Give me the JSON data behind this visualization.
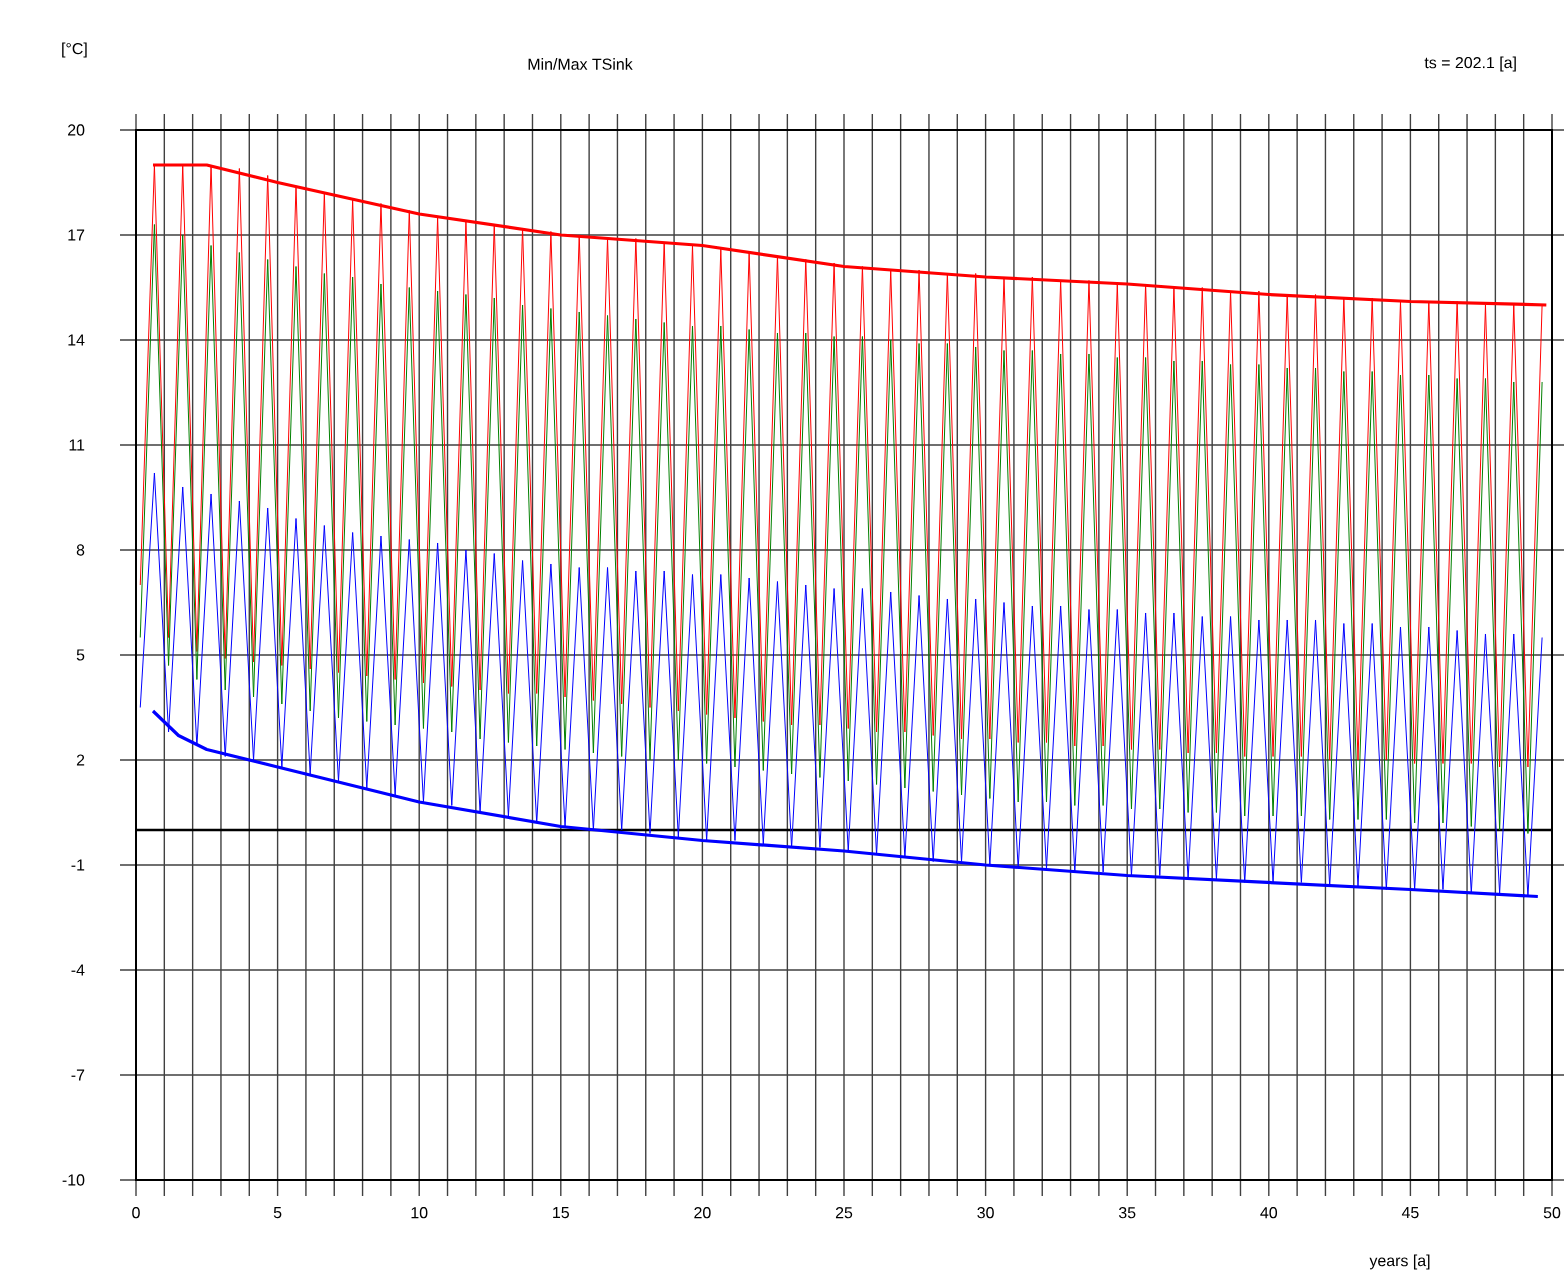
{
  "chart_data": {
    "type": "line",
    "title": "Min/Max TSink",
    "ylabel": "[°C]",
    "xlabel": "years [a]",
    "annotations": [
      "ts = 202.1 [a]"
    ],
    "xlim": [
      0,
      50
    ],
    "ylim": [
      -10,
      20
    ],
    "xticks": [
      0,
      {
        "value": 1,
        "label": null
      },
      {
        "value": 2,
        "label": null
      },
      {
        "value": 3,
        "label": null
      },
      {
        "value": 4,
        "label": null
      },
      5,
      {
        "value": 6,
        "label": null
      },
      {
        "value": 7,
        "label": null
      },
      {
        "value": 8,
        "label": null
      },
      {
        "value": 9,
        "label": null
      },
      10,
      {
        "value": 11,
        "label": null
      },
      {
        "value": 12,
        "label": null
      },
      {
        "value": 13,
        "label": null
      },
      {
        "value": 14,
        "label": null
      },
      15,
      {
        "value": 16,
        "label": null
      },
      {
        "value": 17,
        "label": null
      },
      {
        "value": 18,
        "label": null
      },
      {
        "value": 19,
        "label": null
      },
      20,
      {
        "value": 21,
        "label": null
      },
      {
        "value": 22,
        "label": null
      },
      {
        "value": 23,
        "label": null
      },
      {
        "value": 24,
        "label": null
      },
      25,
      {
        "value": 26,
        "label": null
      },
      {
        "value": 27,
        "label": null
      },
      {
        "value": 28,
        "label": null
      },
      {
        "value": 29,
        "label": null
      },
      30,
      {
        "value": 31,
        "label": null
      },
      {
        "value": 32,
        "label": null
      },
      {
        "value": 33,
        "label": null
      },
      {
        "value": 34,
        "label": null
      },
      35,
      {
        "value": 36,
        "label": null
      },
      {
        "value": 37,
        "label": null
      },
      {
        "value": 38,
        "label": null
      },
      {
        "value": 39,
        "label": null
      },
      40,
      {
        "value": 41,
        "label": null
      },
      {
        "value": 42,
        "label": null
      },
      {
        "value": 43,
        "label": null
      },
      {
        "value": 44,
        "label": null
      },
      45,
      {
        "value": 46,
        "label": null
      },
      {
        "value": 47,
        "label": null
      },
      {
        "value": 48,
        "label": null
      },
      {
        "value": 49,
        "label": null
      },
      50
    ],
    "yticks": [
      -10,
      -7,
      -4,
      -1,
      2,
      5,
      8,
      11,
      14,
      17,
      20
    ],
    "grid": true,
    "marker": "none",
    "line_style": "solid",
    "ref_lines": [
      {
        "axis": "y",
        "value": 0,
        "color": "#000000"
      }
    ],
    "x": [
      0.15,
      0.65,
      1.15,
      1.65,
      2.15,
      2.65,
      3.15,
      3.65,
      4.15,
      4.65,
      5.15,
      5.65,
      6.15,
      6.65,
      7.15,
      7.65,
      8.15,
      8.65,
      9.15,
      9.65,
      10.15,
      10.65,
      11.15,
      11.65,
      12.15,
      12.65,
      13.15,
      13.65,
      14.15,
      14.65,
      15.15,
      15.65,
      16.15,
      16.65,
      17.15,
      17.65,
      18.15,
      18.65,
      19.15,
      19.65,
      20.15,
      20.65,
      21.15,
      21.65,
      22.15,
      22.65,
      23.15,
      23.65,
      24.15,
      24.65,
      25.15,
      25.65,
      26.15,
      26.65,
      27.15,
      27.65,
      28.15,
      28.65,
      29.15,
      29.65,
      30.15,
      30.65,
      31.15,
      31.65,
      32.15,
      32.65,
      33.15,
      33.65,
      34.15,
      34.65,
      35.15,
      35.65,
      36.15,
      36.65,
      37.15,
      37.65,
      38.15,
      38.65,
      39.15,
      39.65,
      40.15,
      40.65,
      41.15,
      41.65,
      42.15,
      42.65,
      43.15,
      43.65,
      44.15,
      44.65,
      45.15,
      45.65,
      46.15,
      46.65,
      47.15,
      47.65,
      48.15,
      48.65,
      49.15,
      49.65
    ],
    "series": [
      {
        "color": "#ff0000",
        "values": [
          7.0,
          19.0,
          5.5,
          19.0,
          5.1,
          19.0,
          4.9,
          18.9,
          4.8,
          18.7,
          4.7,
          18.4,
          4.6,
          18.2,
          4.5,
          18.0,
          4.4,
          17.9,
          4.3,
          17.7,
          4.2,
          17.5,
          4.1,
          17.4,
          4.0,
          17.3,
          3.9,
          17.2,
          3.9,
          17.1,
          3.8,
          17.0,
          3.7,
          16.9,
          3.6,
          16.9,
          3.5,
          16.8,
          3.4,
          16.7,
          3.3,
          16.6,
          3.2,
          16.5,
          3.1,
          16.4,
          3.0,
          16.3,
          3.0,
          16.2,
          2.9,
          16.1,
          2.8,
          16.0,
          2.8,
          16.0,
          2.7,
          15.9,
          2.6,
          15.9,
          2.6,
          15.8,
          2.5,
          15.8,
          2.5,
          15.7,
          2.4,
          15.7,
          2.4,
          15.6,
          2.3,
          15.6,
          2.3,
          15.5,
          2.2,
          15.5,
          2.2,
          15.4,
          2.1,
          15.4,
          2.1,
          15.3,
          2.1,
          15.3,
          2.0,
          15.2,
          2.0,
          15.2,
          2.0,
          15.1,
          1.9,
          15.1,
          1.9,
          15.1,
          1.9,
          15.0,
          1.8,
          15.0,
          1.8,
          15.0
        ]
      },
      {
        "color": "#008000",
        "values": [
          5.5,
          17.3,
          4.7,
          17.0,
          4.3,
          16.7,
          4.0,
          16.5,
          3.8,
          16.3,
          3.6,
          16.1,
          3.4,
          15.9,
          3.2,
          15.8,
          3.1,
          15.6,
          3.0,
          15.5,
          2.9,
          15.4,
          2.8,
          15.3,
          2.6,
          15.2,
          2.5,
          15.0,
          2.4,
          14.9,
          2.3,
          14.8,
          2.2,
          14.7,
          2.1,
          14.6,
          2.0,
          14.5,
          2.0,
          14.4,
          1.9,
          14.4,
          1.8,
          14.3,
          1.7,
          14.2,
          1.6,
          14.2,
          1.5,
          14.1,
          1.4,
          14.1,
          1.3,
          14.0,
          1.2,
          13.9,
          1.1,
          13.9,
          1.0,
          13.8,
          0.9,
          13.7,
          0.8,
          13.7,
          0.8,
          13.6,
          0.7,
          13.6,
          0.7,
          13.5,
          0.6,
          13.5,
          0.6,
          13.4,
          0.5,
          13.4,
          0.5,
          13.3,
          0.4,
          13.3,
          0.4,
          13.2,
          0.4,
          13.2,
          0.3,
          13.1,
          0.3,
          13.1,
          0.3,
          13.0,
          0.2,
          13.0,
          0.2,
          12.9,
          0.1,
          12.9,
          0.0,
          12.8,
          -0.1,
          12.8
        ]
      },
      {
        "color": "#0000ff",
        "values": [
          3.5,
          10.2,
          2.8,
          9.8,
          2.4,
          9.6,
          2.1,
          9.4,
          2.0,
          9.2,
          1.8,
          8.9,
          1.6,
          8.7,
          1.4,
          8.5,
          1.2,
          8.4,
          1.0,
          8.3,
          0.8,
          8.2,
          0.7,
          8.0,
          0.5,
          7.9,
          0.4,
          7.7,
          0.2,
          7.6,
          0.1,
          7.5,
          0.0,
          7.5,
          0.0,
          7.4,
          -0.1,
          7.4,
          -0.2,
          7.3,
          -0.3,
          7.3,
          -0.3,
          7.2,
          -0.4,
          7.1,
          -0.5,
          7.0,
          -0.5,
          6.9,
          -0.6,
          6.9,
          -0.7,
          6.8,
          -0.8,
          6.7,
          -0.9,
          6.6,
          -0.9,
          6.6,
          -1.0,
          6.5,
          -1.1,
          6.4,
          -1.1,
          6.4,
          -1.2,
          6.3,
          -1.2,
          6.3,
          -1.3,
          6.2,
          -1.3,
          6.2,
          -1.4,
          6.1,
          -1.4,
          6.1,
          -1.5,
          6.0,
          -1.5,
          6.0,
          -1.5,
          6.0,
          -1.6,
          5.9,
          -1.6,
          5.9,
          -1.7,
          5.8,
          -1.7,
          5.8,
          -1.7,
          5.7,
          -1.8,
          5.6,
          -1.8,
          5.6,
          -1.9,
          5.5
        ]
      },
      {
        "color": "#ff0000",
        "x": [
          0.6,
          2.5,
          5,
          10,
          15,
          20,
          25,
          30,
          35,
          40,
          45,
          49.8
        ],
        "values": [
          19.0,
          19.0,
          18.5,
          17.6,
          17.0,
          16.7,
          16.1,
          15.8,
          15.6,
          15.3,
          15.1,
          15.0
        ]
      },
      {
        "color": "#0000ff",
        "x": [
          0.6,
          1.5,
          2.5,
          5,
          10,
          15,
          20,
          25,
          30,
          35,
          40,
          45,
          49.5
        ],
        "values": [
          3.4,
          2.7,
          2.3,
          1.8,
          0.8,
          0.1,
          -0.3,
          -0.6,
          -1.0,
          -1.3,
          -1.5,
          -1.7,
          -1.9
        ]
      }
    ]
  }
}
